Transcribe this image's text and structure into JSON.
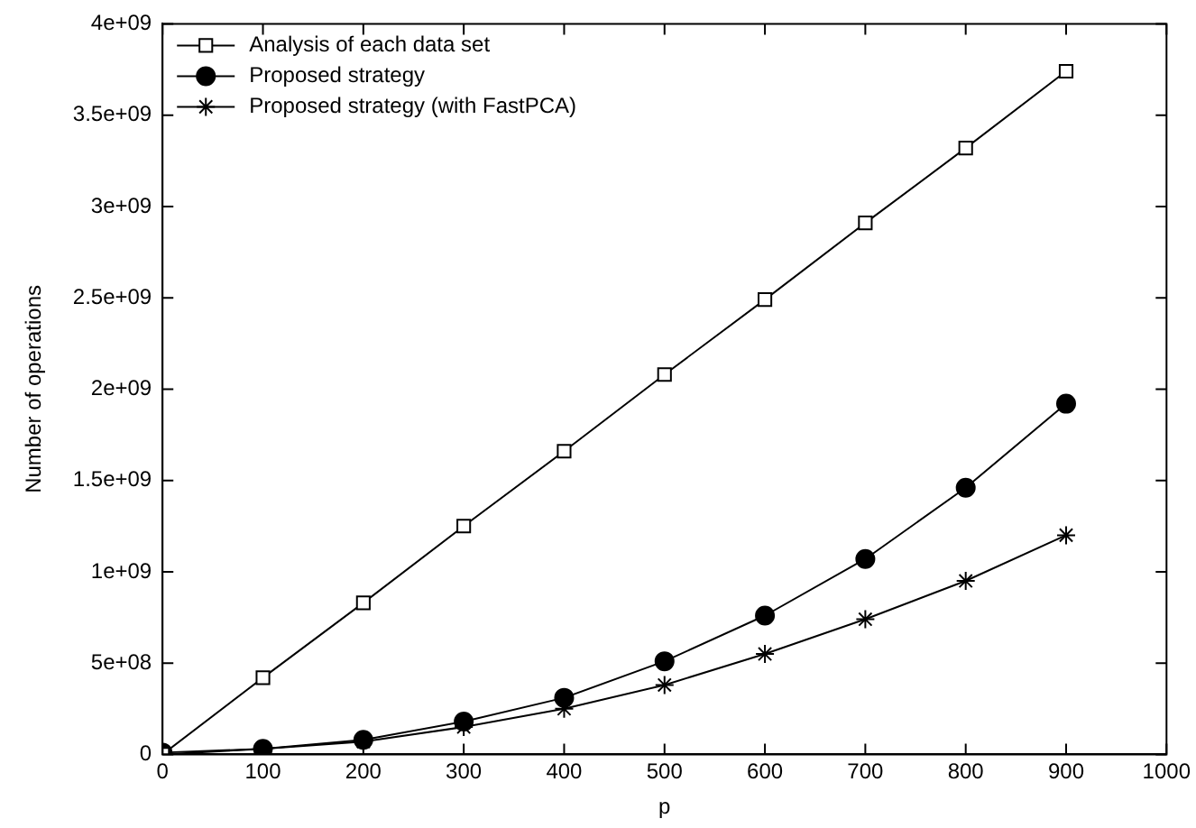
{
  "chart_data": {
    "type": "line",
    "xlabel": "p",
    "ylabel": "Number of operations",
    "x": [
      0,
      100,
      200,
      300,
      400,
      500,
      600,
      700,
      800,
      900
    ],
    "xlim": [
      0,
      1000
    ],
    "xticks": [
      0,
      100,
      200,
      300,
      400,
      500,
      600,
      700,
      800,
      900,
      1000
    ],
    "ylim": [
      0,
      4000000000
    ],
    "yticks": [
      {
        "value": 0,
        "label": "0"
      },
      {
        "value": 500000000,
        "label": "5e+08"
      },
      {
        "value": 1000000000,
        "label": "1e+09"
      },
      {
        "value": 1500000000,
        "label": "1.5e+09"
      },
      {
        "value": 2000000000,
        "label": "2e+09"
      },
      {
        "value": 2500000000,
        "label": "2.5e+09"
      },
      {
        "value": 3000000000,
        "label": "3e+09"
      },
      {
        "value": 3500000000,
        "label": "3.5e+09"
      },
      {
        "value": 4000000000,
        "label": "4e+09"
      }
    ],
    "grid": false,
    "legend": "top left",
    "line_style": "solid",
    "series": [
      {
        "name": "Analysis of each data set",
        "color": "#000000",
        "marker": "square",
        "values": [
          0,
          420000000,
          830000000,
          1250000000,
          1660000000,
          2080000000,
          2490000000,
          2910000000,
          3320000000,
          3740000000
        ]
      },
      {
        "name": "Proposed strategy",
        "color": "#000000",
        "marker": "circle",
        "values": [
          10000000,
          30000000,
          80000000,
          180000000,
          310000000,
          510000000,
          760000000,
          1070000000,
          1460000000,
          1920000000
        ]
      },
      {
        "name": "Proposed strategy (with FastPCA)",
        "color": "#000000",
        "marker": "cross",
        "values": [
          0,
          30000000,
          70000000,
          150000000,
          250000000,
          380000000,
          550000000,
          740000000,
          950000000,
          1200000000
        ]
      }
    ]
  }
}
